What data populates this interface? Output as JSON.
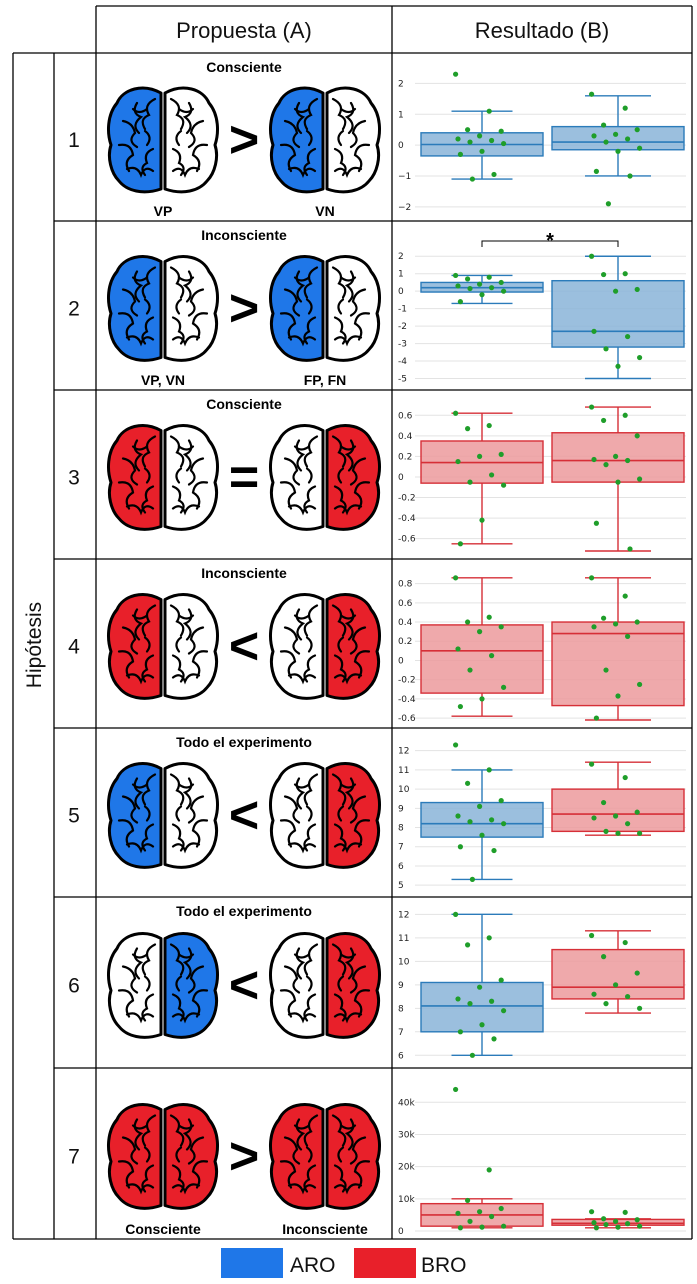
{
  "headers": {
    "proposal": "Propuesta (A)",
    "result": "Resultado (B)",
    "side": "Hipótesis"
  },
  "colors": {
    "ARO": "#1f77e8",
    "BRO": "#e8202a",
    "box_blue": "#2b7bba",
    "box_blue_fill": "#8ab4d8",
    "box_red": "#d62f37",
    "box_red_fill": "#ec9a9c",
    "dot": "#1f9e2a"
  },
  "legend": [
    {
      "label": "ARO",
      "color": "#1f77e8"
    },
    {
      "label": "BRO",
      "color": "#e8202a"
    }
  ],
  "rows": [
    {
      "num": "1",
      "caption": "Consciente",
      "left_label": "VP",
      "right_label": "VN",
      "comparator": ">",
      "left_brain": [
        "blue",
        "white"
      ],
      "right_brain": [
        "blue",
        "white"
      ]
    },
    {
      "num": "2",
      "caption": "Inconsciente",
      "left_label": "VP, VN",
      "right_label": "FP, FN",
      "comparator": ">",
      "left_brain": [
        "blue",
        "white"
      ],
      "right_brain": [
        "blue",
        "white"
      ]
    },
    {
      "num": "3",
      "caption": "Consciente",
      "left_label": "",
      "right_label": "",
      "comparator": "=",
      "left_brain": [
        "red",
        "white"
      ],
      "right_brain": [
        "white",
        "red"
      ]
    },
    {
      "num": "4",
      "caption": "Inconsciente",
      "left_label": "",
      "right_label": "",
      "comparator": "<",
      "left_brain": [
        "red",
        "white"
      ],
      "right_brain": [
        "white",
        "red"
      ]
    },
    {
      "num": "5",
      "caption": "Todo el experimento",
      "left_label": "",
      "right_label": "",
      "comparator": "<",
      "left_brain": [
        "blue",
        "white"
      ],
      "right_brain": [
        "white",
        "red"
      ]
    },
    {
      "num": "6",
      "caption": "Todo el experimento",
      "left_label": "",
      "right_label": "",
      "comparator": "<",
      "left_brain": [
        "white",
        "blue"
      ],
      "right_brain": [
        "white",
        "red"
      ]
    },
    {
      "num": "7",
      "caption": "",
      "left_label": "Consciente",
      "right_label": "Inconsciente",
      "comparator": ">",
      "left_brain": [
        "red",
        "red"
      ],
      "right_brain": [
        "red",
        "red"
      ]
    }
  ],
  "chart_data": [
    {
      "type": "box",
      "hypothesis": "1",
      "ylim": [
        -2.2,
        2.5
      ],
      "ticks": [
        {
          "v": 2,
          "t": "2"
        },
        {
          "v": 1,
          "t": "1"
        },
        {
          "v": 0,
          "t": "0"
        },
        {
          "v": -1,
          "t": "−1"
        },
        {
          "v": -2,
          "t": "−2"
        }
      ],
      "boxes": [
        {
          "color": "blue",
          "q1": -0.35,
          "median": 0.02,
          "q3": 0.4,
          "low": -1.1,
          "high": 1.1,
          "points": [
            2.3,
            1.1,
            0.5,
            0.45,
            0.3,
            0.2,
            0.15,
            0.1,
            0.05,
            -0.2,
            -0.3,
            -0.95,
            -1.1
          ]
        },
        {
          "color": "blue",
          "q1": -0.15,
          "median": 0.1,
          "q3": 0.6,
          "low": -1.0,
          "high": 1.6,
          "points": [
            1.65,
            1.2,
            0.65,
            0.5,
            0.35,
            0.3,
            0.2,
            0.1,
            -0.1,
            -0.2,
            -0.85,
            -1.0,
            -1.9
          ]
        }
      ]
    },
    {
      "type": "box",
      "hypothesis": "2",
      "ylim": [
        -5.2,
        2.3
      ],
      "significance": "*",
      "ticks": [
        {
          "v": 2,
          "t": "2"
        },
        {
          "v": 1,
          "t": "1"
        },
        {
          "v": 0,
          "t": "0"
        },
        {
          "v": -1,
          "t": "-1"
        },
        {
          "v": -2,
          "t": "-2"
        },
        {
          "v": -3,
          "t": "-3"
        },
        {
          "v": -4,
          "t": "-4"
        },
        {
          "v": -5,
          "t": "-5"
        }
      ],
      "boxes": [
        {
          "color": "blue",
          "q1": -0.05,
          "median": 0.2,
          "q3": 0.5,
          "low": -0.7,
          "high": 0.9,
          "points": [
            0.9,
            0.8,
            0.7,
            0.5,
            0.4,
            0.3,
            0.2,
            0.15,
            0.0,
            -0.2,
            -0.6
          ]
        },
        {
          "color": "blue",
          "q1": -3.2,
          "median": -2.3,
          "q3": 0.6,
          "low": -5.0,
          "high": 2.0,
          "points": [
            2.0,
            1.0,
            0.95,
            0.1,
            0.0,
            -2.3,
            -2.6,
            -3.3,
            -3.8,
            -4.3
          ]
        }
      ]
    },
    {
      "type": "box",
      "hypothesis": "3",
      "ylim": [
        -0.72,
        0.7
      ],
      "ticks": [
        {
          "v": 0.6,
          "t": "0.6"
        },
        {
          "v": 0.4,
          "t": "0.4"
        },
        {
          "v": 0.2,
          "t": "0.2"
        },
        {
          "v": 0,
          "t": "0"
        },
        {
          "v": -0.2,
          "t": "-0.2"
        },
        {
          "v": -0.4,
          "t": "-0.4"
        },
        {
          "v": -0.6,
          "t": "-0.6"
        }
      ],
      "boxes": [
        {
          "color": "red",
          "q1": -0.06,
          "median": 0.14,
          "q3": 0.35,
          "low": -0.65,
          "high": 0.62,
          "points": [
            0.62,
            0.5,
            0.47,
            0.22,
            0.2,
            0.15,
            0.02,
            -0.05,
            -0.08,
            -0.42,
            -0.65
          ]
        },
        {
          "color": "red",
          "q1": -0.05,
          "median": 0.16,
          "q3": 0.43,
          "low": -0.72,
          "high": 0.68,
          "points": [
            0.68,
            0.6,
            0.55,
            0.4,
            0.2,
            0.17,
            0.16,
            0.12,
            -0.02,
            -0.05,
            -0.45,
            -0.7
          ]
        }
      ]
    },
    {
      "type": "box",
      "hypothesis": "4",
      "ylim": [
        -0.62,
        0.9
      ],
      "ticks": [
        {
          "v": 0.8,
          "t": "0.8"
        },
        {
          "v": 0.6,
          "t": "0.6"
        },
        {
          "v": 0.4,
          "t": "0.4"
        },
        {
          "v": 0.2,
          "t": "0.2"
        },
        {
          "v": 0,
          "t": "0"
        },
        {
          "v": -0.2,
          "t": "-0.2"
        },
        {
          "v": -0.4,
          "t": "-0.4"
        },
        {
          "v": -0.6,
          "t": "-0.6"
        }
      ],
      "boxes": [
        {
          "color": "red",
          "q1": -0.34,
          "median": 0.1,
          "q3": 0.37,
          "low": -0.58,
          "high": 0.86,
          "points": [
            0.86,
            0.45,
            0.4,
            0.35,
            0.3,
            0.12,
            0.05,
            -0.1,
            -0.28,
            -0.4,
            -0.48
          ]
        },
        {
          "color": "red",
          "q1": -0.47,
          "median": 0.28,
          "q3": 0.4,
          "low": -0.62,
          "high": 0.86,
          "points": [
            0.86,
            0.67,
            0.44,
            0.4,
            0.38,
            0.35,
            0.25,
            -0.1,
            -0.25,
            -0.37,
            -0.6
          ]
        }
      ]
    },
    {
      "type": "box",
      "hypothesis": "5",
      "ylim": [
        4.8,
        12.4
      ],
      "ticks": [
        {
          "v": 12,
          "t": "12"
        },
        {
          "v": 11,
          "t": "11"
        },
        {
          "v": 10,
          "t": "10"
        },
        {
          "v": 9,
          "t": "9"
        },
        {
          "v": 8,
          "t": "8"
        },
        {
          "v": 7,
          "t": "7"
        },
        {
          "v": 6,
          "t": "6"
        },
        {
          "v": 5,
          "t": "5"
        }
      ],
      "boxes": [
        {
          "color": "blue",
          "q1": 7.5,
          "median": 8.2,
          "q3": 9.3,
          "low": 5.3,
          "high": 11.0,
          "points": [
            12.3,
            11.0,
            10.3,
            9.4,
            9.1,
            8.6,
            8.4,
            8.3,
            8.2,
            7.6,
            7.0,
            6.8,
            5.3
          ]
        },
        {
          "color": "blue",
          "q1": 7.8,
          "median": 8.7,
          "q3": 10.0,
          "low": 7.6,
          "high": 11.4,
          "points": [
            11.3,
            10.6,
            9.3,
            8.8,
            8.6,
            8.5,
            8.2,
            7.8,
            7.7,
            7.7
          ],
          "color_override": "red"
        }
      ]
    },
    {
      "type": "box",
      "hypothesis": "6",
      "ylim": [
        5.8,
        12.1
      ],
      "ticks": [
        {
          "v": 12,
          "t": "12"
        },
        {
          "v": 11,
          "t": "11"
        },
        {
          "v": 10,
          "t": "10"
        },
        {
          "v": 9,
          "t": "9"
        },
        {
          "v": 8,
          "t": "8"
        },
        {
          "v": 7,
          "t": "7"
        },
        {
          "v": 6,
          "t": "6"
        }
      ],
      "boxes": [
        {
          "color": "blue",
          "q1": 7.0,
          "median": 8.1,
          "q3": 9.1,
          "low": 6.0,
          "high": 12.0,
          "points": [
            12.0,
            11.0,
            10.7,
            9.2,
            8.9,
            8.4,
            8.3,
            8.2,
            7.9,
            7.3,
            7.0,
            6.7,
            6.0
          ]
        },
        {
          "color": "red",
          "q1": 8.4,
          "median": 8.9,
          "q3": 10.5,
          "low": 7.8,
          "high": 11.3,
          "points": [
            11.1,
            10.8,
            10.2,
            9.5,
            9.0,
            8.6,
            8.5,
            8.2,
            8.0
          ]
        }
      ]
    },
    {
      "type": "box",
      "hypothesis": "7",
      "ylim": [
        0,
        46000
      ],
      "ticks": [
        {
          "v": 40000,
          "t": "40k"
        },
        {
          "v": 30000,
          "t": "30k"
        },
        {
          "v": 20000,
          "t": "20k"
        },
        {
          "v": 10000,
          "t": "10k"
        },
        {
          "v": 0,
          "t": "0"
        }
      ],
      "boxes": [
        {
          "color": "red",
          "q1": 1500,
          "median": 5000,
          "q3": 8500,
          "low": 1000,
          "high": 10000,
          "points": [
            44000,
            19000,
            9500,
            7000,
            6000,
            5500,
            4500,
            3000,
            1500,
            1200,
            1000
          ]
        },
        {
          "color": "red",
          "q1": 1800,
          "median": 2400,
          "q3": 3600,
          "low": 1000,
          "high": 3800,
          "points": [
            6000,
            5800,
            3800,
            3500,
            3000,
            2600,
            2300,
            2000,
            1500,
            1200,
            1000
          ]
        }
      ]
    }
  ]
}
